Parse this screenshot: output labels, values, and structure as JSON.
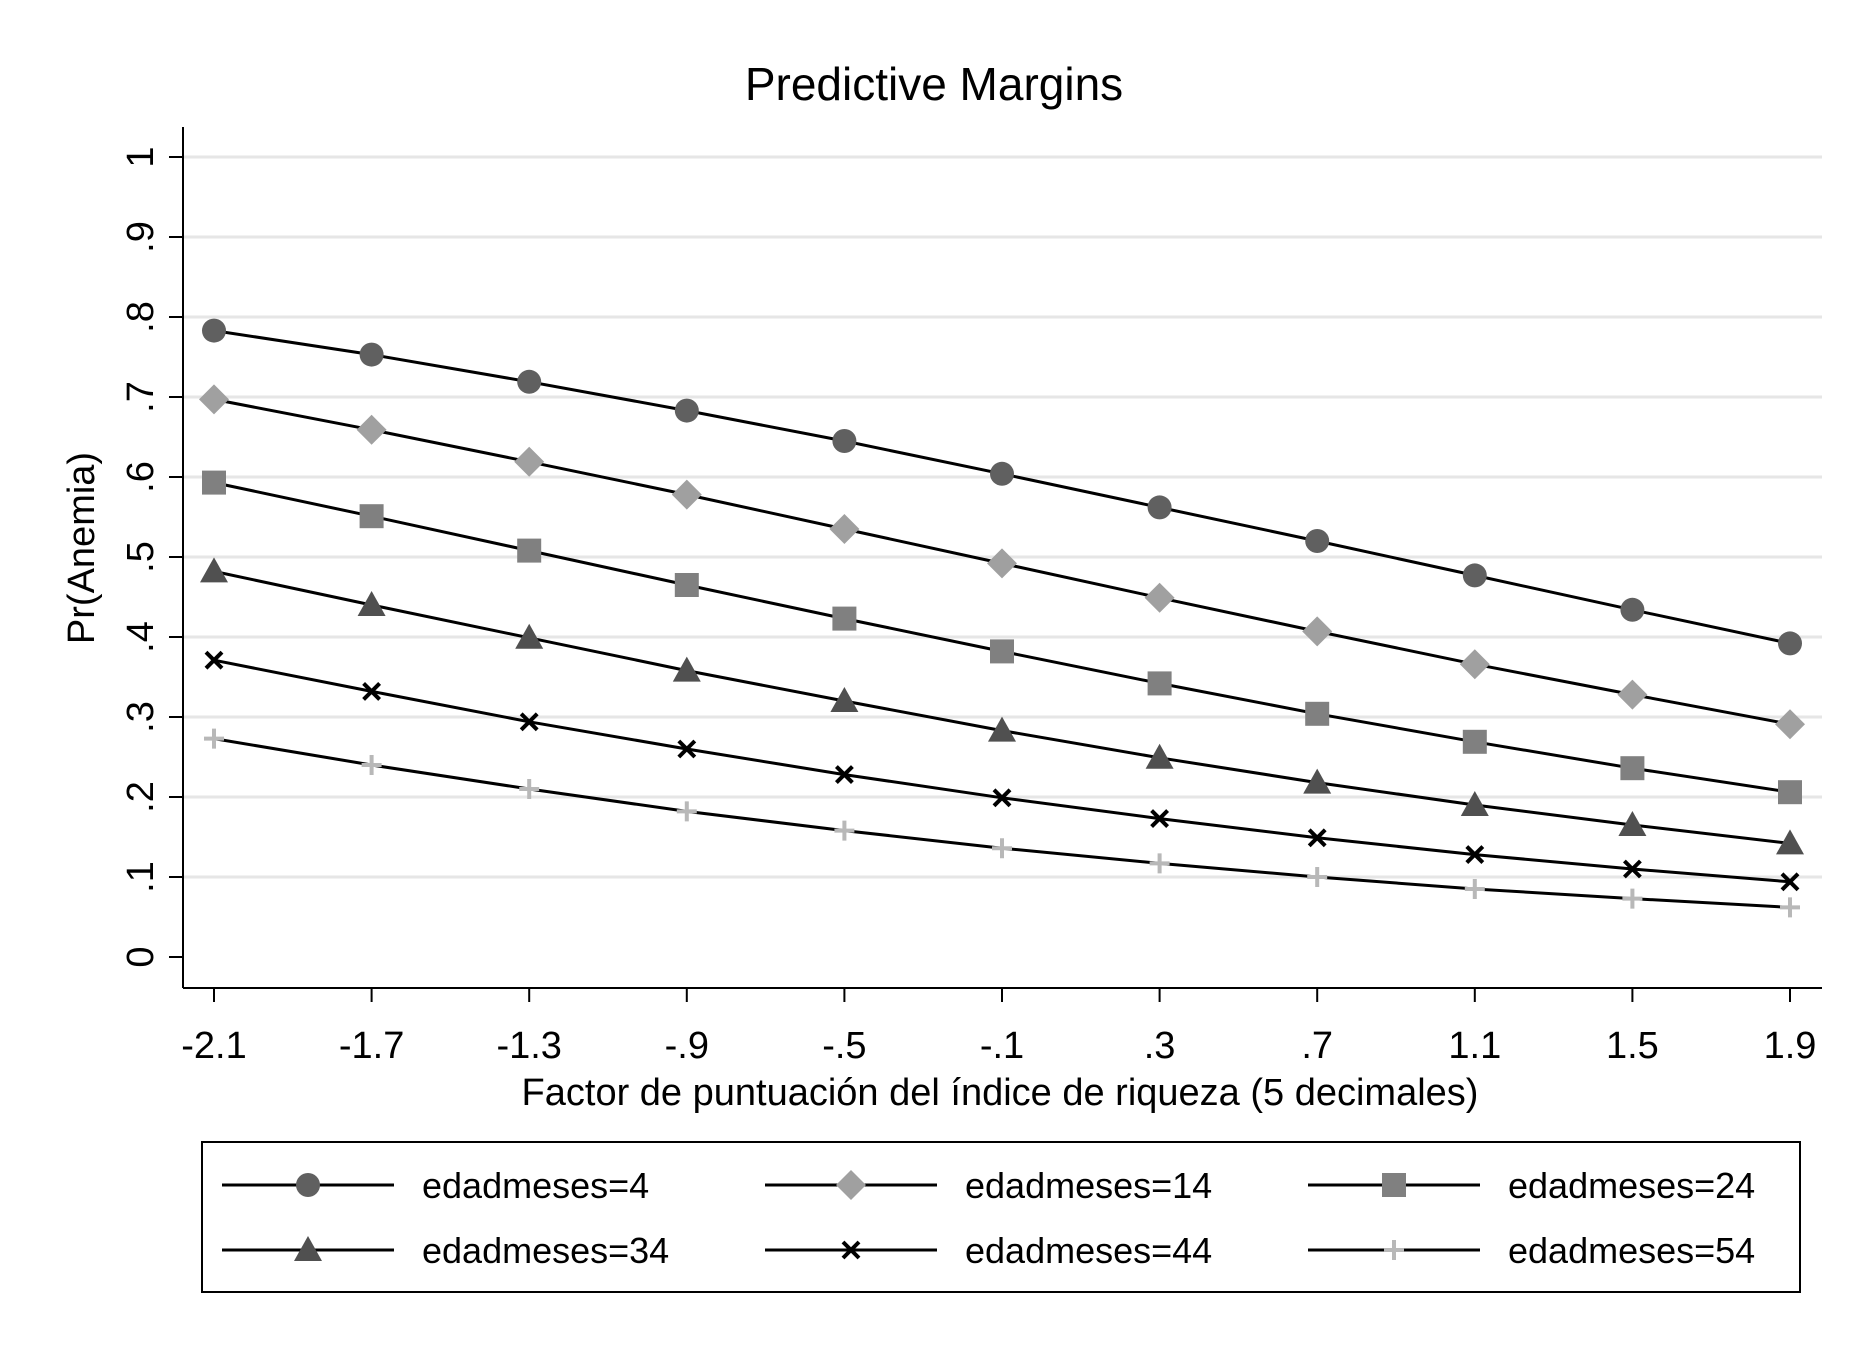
{
  "chart_data": {
    "type": "line",
    "title": "Predictive Margins",
    "xlabel": "Factor de puntuación del índice de riqueza (5 decimales)",
    "ylabel": "Pr(Anemia)",
    "x": [
      -2.1,
      -1.7,
      -1.3,
      -0.9,
      -0.5,
      -0.1,
      0.3,
      0.7,
      1.1,
      1.5,
      1.9
    ],
    "x_tick_labels": [
      "-2.1",
      "-1.7",
      "-1.3",
      "-.9",
      "-.5",
      "-.1",
      ".3",
      ".7",
      "1.1",
      "1.5",
      "1.9"
    ],
    "y_ticks": [
      0,
      0.1,
      0.2,
      0.3,
      0.4,
      0.5,
      0.6,
      0.7,
      0.8,
      0.9,
      1
    ],
    "y_tick_labels": [
      "0",
      ".1",
      ".2",
      ".3",
      ".4",
      ".5",
      ".6",
      ".7",
      ".8",
      ".9",
      "1"
    ],
    "xlim": [
      -2.1,
      1.9
    ],
    "ylim": [
      0,
      1
    ],
    "grid": "horizontal",
    "legend_position": "bottom",
    "series": [
      {
        "name": "edadmeses=4",
        "marker": "circle",
        "color": "#606060",
        "values": [
          0.783,
          0.753,
          0.719,
          0.683,
          0.645,
          0.604,
          0.562,
          0.52,
          0.477,
          0.434,
          0.392
        ]
      },
      {
        "name": "edadmeses=14",
        "marker": "diamond",
        "color": "#a0a0a0",
        "values": [
          0.697,
          0.659,
          0.619,
          0.578,
          0.535,
          0.492,
          0.449,
          0.407,
          0.366,
          0.328,
          0.291
        ]
      },
      {
        "name": "edadmeses=24",
        "marker": "square",
        "color": "#808080",
        "values": [
          0.593,
          0.551,
          0.508,
          0.465,
          0.423,
          0.382,
          0.342,
          0.304,
          0.269,
          0.236,
          0.206
        ]
      },
      {
        "name": "edadmeses=34",
        "marker": "triangle",
        "color": "#505050",
        "values": [
          0.482,
          0.44,
          0.399,
          0.358,
          0.32,
          0.283,
          0.249,
          0.218,
          0.19,
          0.165,
          0.142
        ]
      },
      {
        "name": "edadmeses=44",
        "marker": "x",
        "color": "#000000",
        "values": [
          0.371,
          0.332,
          0.294,
          0.26,
          0.228,
          0.199,
          0.173,
          0.149,
          0.128,
          0.11,
          0.094
        ]
      },
      {
        "name": "edadmeses=54",
        "marker": "plus",
        "color": "#b8b8b8",
        "values": [
          0.273,
          0.24,
          0.21,
          0.182,
          0.158,
          0.136,
          0.117,
          0.1,
          0.085,
          0.073,
          0.062
        ]
      }
    ]
  }
}
